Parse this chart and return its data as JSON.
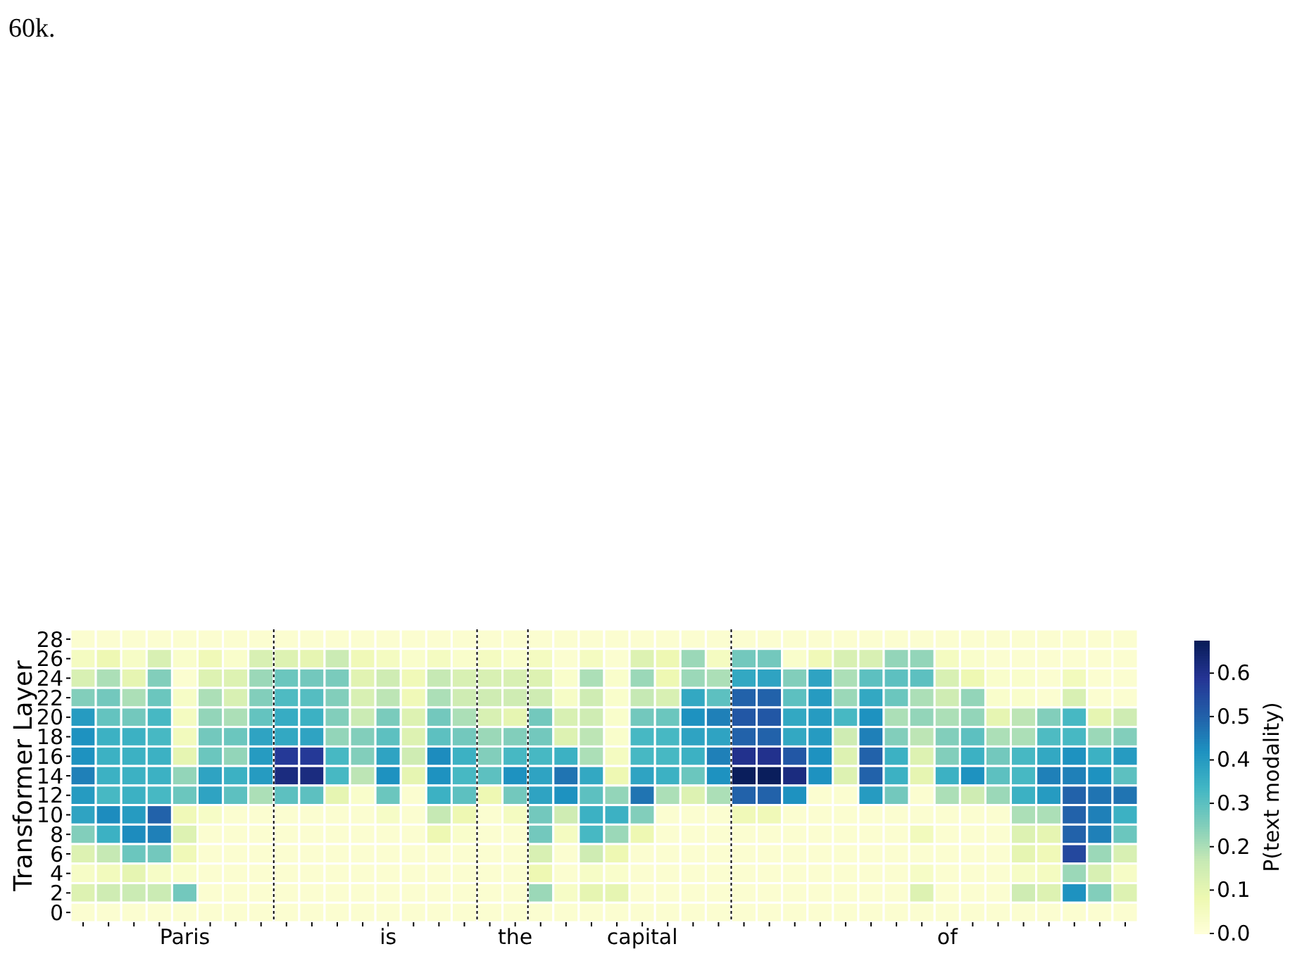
{
  "chart_data": {
    "type": "heatmap",
    "ylabel": "Transformer Layer",
    "clabel": "P(text modality)",
    "annotations": [
      "60k."
    ],
    "categories": [
      null,
      null,
      null,
      null,
      "Paris",
      null,
      null,
      null,
      null,
      null,
      null,
      null,
      "is",
      null,
      null,
      null,
      null,
      "the",
      null,
      null,
      null,
      null,
      "capital",
      null,
      null,
      null,
      null,
      null,
      null,
      null,
      null,
      null,
      null,
      null,
      "of",
      null,
      null,
      null,
      null,
      null,
      null,
      null
    ],
    "y_categories": [
      "28",
      "26",
      "24",
      "22",
      "20",
      "18",
      "16",
      "14",
      "12",
      "10",
      "8",
      "6",
      "4",
      "2",
      "0"
    ],
    "clim": [
      0,
      0.675
    ],
    "cticks": [
      {
        "value": 0,
        "label": "0.0"
      },
      {
        "value": 0.1,
        "label": "0.1"
      },
      {
        "value": 0.2,
        "label": "0.2"
      },
      {
        "value": 0.3,
        "label": "0.3"
      },
      {
        "value": 0.4,
        "label": "0.4"
      },
      {
        "value": 0.5,
        "label": "0.5"
      },
      {
        "value": 0.6,
        "label": "0.6"
      }
    ],
    "cells": [
      [
        0.02,
        0.02,
        0.02,
        0.02,
        0.02,
        0.02,
        0.02,
        0.02,
        0.02,
        0.02,
        0.02,
        0.02,
        0.02,
        0.02,
        0.02,
        0.02,
        0.02,
        0.02,
        0.02,
        0.02,
        0.02,
        0.02,
        0.02,
        0.02,
        0.02,
        0.02,
        0.02,
        0.02,
        0.02,
        0.02,
        0.02,
        0.02,
        0.02,
        0.02,
        0.02,
        0.02,
        0.02,
        0.02,
        0.02,
        0.02,
        0.02,
        0.02
      ],
      [
        0.05,
        0.08,
        0.04,
        0.13,
        0.03,
        0.07,
        0.03,
        0.13,
        0.12,
        0.1,
        0.16,
        0.07,
        0.05,
        0.03,
        0.05,
        0.03,
        0.05,
        0.03,
        0.05,
        0.02,
        0.05,
        0.02,
        0.12,
        0.08,
        0.22,
        0.05,
        0.27,
        0.27,
        0.03,
        0.07,
        0.13,
        0.13,
        0.23,
        0.23,
        0.05,
        0.03,
        0.02,
        0.02,
        0.02,
        0.02,
        0.02,
        0.02
      ],
      [
        0.13,
        0.2,
        0.1,
        0.25,
        0.02,
        0.12,
        0.12,
        0.22,
        0.28,
        0.27,
        0.26,
        0.11,
        0.15,
        0.07,
        0.17,
        0.13,
        0.13,
        0.13,
        0.12,
        0.03,
        0.2,
        0.03,
        0.22,
        0.08,
        0.22,
        0.2,
        0.37,
        0.38,
        0.25,
        0.38,
        0.2,
        0.3,
        0.3,
        0.3,
        0.13,
        0.08,
        0.03,
        0.03,
        0.02,
        0.06,
        0.02,
        0.02
      ],
      [
        0.25,
        0.27,
        0.2,
        0.28,
        0.04,
        0.2,
        0.13,
        0.25,
        0.32,
        0.31,
        0.25,
        0.13,
        0.18,
        0.07,
        0.2,
        0.15,
        0.15,
        0.15,
        0.15,
        0.04,
        0.15,
        0.03,
        0.17,
        0.13,
        0.37,
        0.3,
        0.5,
        0.5,
        0.3,
        0.4,
        0.22,
        0.37,
        0.28,
        0.2,
        0.15,
        0.23,
        0.03,
        0.03,
        0.02,
        0.13,
        0.02,
        0.02
      ],
      [
        0.4,
        0.29,
        0.27,
        0.33,
        0.05,
        0.23,
        0.2,
        0.29,
        0.36,
        0.35,
        0.25,
        0.16,
        0.26,
        0.12,
        0.27,
        0.2,
        0.13,
        0.1,
        0.27,
        0.13,
        0.15,
        0.03,
        0.27,
        0.28,
        0.42,
        0.45,
        0.52,
        0.52,
        0.37,
        0.4,
        0.33,
        0.42,
        0.2,
        0.23,
        0.2,
        0.23,
        0.1,
        0.18,
        0.25,
        0.33,
        0.1,
        0.15
      ],
      [
        0.42,
        0.35,
        0.35,
        0.33,
        0.06,
        0.27,
        0.28,
        0.38,
        0.37,
        0.38,
        0.23,
        0.25,
        0.3,
        0.12,
        0.3,
        0.27,
        0.22,
        0.25,
        0.27,
        0.12,
        0.18,
        0.03,
        0.33,
        0.33,
        0.38,
        0.38,
        0.5,
        0.5,
        0.37,
        0.4,
        0.15,
        0.45,
        0.25,
        0.18,
        0.25,
        0.3,
        0.2,
        0.2,
        0.32,
        0.33,
        0.22,
        0.25
      ],
      [
        0.42,
        0.35,
        0.35,
        0.35,
        0.1,
        0.28,
        0.23,
        0.4,
        0.58,
        0.58,
        0.33,
        0.25,
        0.38,
        0.15,
        0.43,
        0.35,
        0.25,
        0.33,
        0.33,
        0.35,
        0.2,
        0.05,
        0.33,
        0.33,
        0.35,
        0.45,
        0.6,
        0.6,
        0.52,
        0.42,
        0.12,
        0.5,
        0.35,
        0.12,
        0.25,
        0.35,
        0.27,
        0.33,
        0.37,
        0.42,
        0.35,
        0.4
      ],
      [
        0.45,
        0.35,
        0.35,
        0.35,
        0.23,
        0.38,
        0.35,
        0.4,
        0.62,
        0.62,
        0.33,
        0.18,
        0.42,
        0.1,
        0.42,
        0.33,
        0.3,
        0.42,
        0.38,
        0.47,
        0.37,
        0.08,
        0.38,
        0.35,
        0.28,
        0.42,
        0.67,
        0.67,
        0.62,
        0.42,
        0.12,
        0.5,
        0.35,
        0.1,
        0.35,
        0.42,
        0.3,
        0.33,
        0.45,
        0.45,
        0.42,
        0.3
      ],
      [
        0.4,
        0.33,
        0.35,
        0.33,
        0.28,
        0.38,
        0.3,
        0.2,
        0.3,
        0.3,
        0.1,
        0.03,
        0.28,
        0.02,
        0.35,
        0.3,
        0.08,
        0.27,
        0.38,
        0.42,
        0.3,
        0.23,
        0.47,
        0.2,
        0.12,
        0.2,
        0.5,
        0.5,
        0.42,
        0.02,
        0.02,
        0.4,
        0.27,
        0.02,
        0.2,
        0.15,
        0.22,
        0.35,
        0.4,
        0.5,
        0.47,
        0.47
      ],
      [
        0.38,
        0.43,
        0.4,
        0.5,
        0.07,
        0.04,
        0.02,
        0.02,
        0.02,
        0.02,
        0.02,
        0.02,
        0.04,
        0.02,
        0.17,
        0.08,
        0.02,
        0.05,
        0.27,
        0.15,
        0.35,
        0.35,
        0.25,
        0.02,
        0.02,
        0.02,
        0.07,
        0.07,
        0.02,
        0.02,
        0.02,
        0.02,
        0.02,
        0.02,
        0.02,
        0.02,
        0.02,
        0.2,
        0.2,
        0.5,
        0.45,
        0.35
      ],
      [
        0.25,
        0.35,
        0.43,
        0.45,
        0.12,
        0.02,
        0.02,
        0.02,
        0.02,
        0.02,
        0.02,
        0.02,
        0.02,
        0.02,
        0.08,
        0.03,
        0.02,
        0.02,
        0.27,
        0.05,
        0.33,
        0.22,
        0.08,
        0.02,
        0.02,
        0.02,
        0.02,
        0.02,
        0.02,
        0.02,
        0.02,
        0.02,
        0.02,
        0.06,
        0.02,
        0.02,
        0.02,
        0.12,
        0.1,
        0.5,
        0.45,
        0.28
      ],
      [
        0.12,
        0.17,
        0.28,
        0.27,
        0.07,
        0.02,
        0.02,
        0.02,
        0.02,
        0.02,
        0.02,
        0.02,
        0.02,
        0.02,
        0.02,
        0.02,
        0.02,
        0.02,
        0.13,
        0.02,
        0.15,
        0.08,
        0.02,
        0.02,
        0.02,
        0.02,
        0.02,
        0.02,
        0.02,
        0.02,
        0.02,
        0.02,
        0.02,
        0.02,
        0.02,
        0.02,
        0.02,
        0.1,
        0.07,
        0.55,
        0.22,
        0.13
      ],
      [
        0.04,
        0.06,
        0.1,
        0.04,
        0.03,
        0.02,
        0.02,
        0.02,
        0.02,
        0.02,
        0.02,
        0.02,
        0.02,
        0.02,
        0.02,
        0.02,
        0.02,
        0.02,
        0.08,
        0.02,
        0.04,
        0.03,
        0.02,
        0.02,
        0.02,
        0.02,
        0.02,
        0.02,
        0.02,
        0.02,
        0.02,
        0.02,
        0.02,
        0.04,
        0.02,
        0.02,
        0.02,
        0.04,
        0.05,
        0.22,
        0.13,
        0.04
      ],
      [
        0.12,
        0.15,
        0.16,
        0.16,
        0.27,
        0.02,
        0.02,
        0.02,
        0.02,
        0.02,
        0.02,
        0.02,
        0.02,
        0.02,
        0.02,
        0.02,
        0.02,
        0.02,
        0.22,
        0.04,
        0.1,
        0.1,
        0.02,
        0.02,
        0.02,
        0.02,
        0.02,
        0.02,
        0.02,
        0.02,
        0.02,
        0.02,
        0.02,
        0.12,
        0.02,
        0.02,
        0.02,
        0.15,
        0.12,
        0.42,
        0.25,
        0.12
      ],
      [
        0.02,
        0.02,
        0.02,
        0.02,
        0.02,
        0.02,
        0.02,
        0.02,
        0.02,
        0.02,
        0.02,
        0.02,
        0.02,
        0.02,
        0.02,
        0.02,
        0.02,
        0.02,
        0.02,
        0.02,
        0.02,
        0.02,
        0.02,
        0.02,
        0.02,
        0.02,
        0.02,
        0.02,
        0.02,
        0.02,
        0.02,
        0.02,
        0.02,
        0.02,
        0.02,
        0.02,
        0.02,
        0.02,
        0.02,
        0.02,
        0.02,
        0.02
      ]
    ]
  }
}
